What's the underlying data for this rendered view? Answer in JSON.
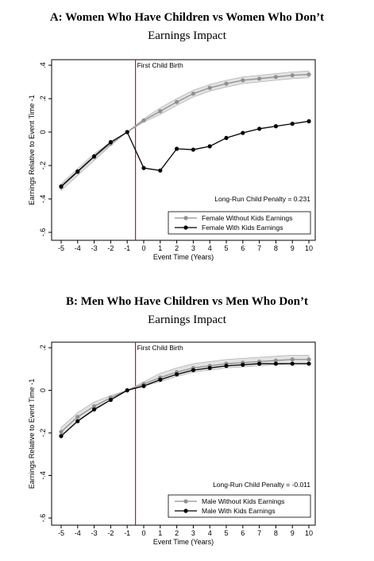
{
  "chart_data": [
    {
      "type": "line",
      "title": "A: Women Who Have Children vs Women Who Don’t",
      "subtitle": "Earnings Impact",
      "xlabel": "Event Time (Years)",
      "ylabel": "Earnings Relative to Event Time -1",
      "xlim": [
        -5,
        10
      ],
      "ylim": [
        -0.6,
        0.4
      ],
      "x_ticks": [
        -5,
        -4,
        -3,
        -2,
        -1,
        0,
        1,
        2,
        3,
        4,
        5,
        6,
        7,
        8,
        9,
        10
      ],
      "y_ticks": [
        -0.6,
        -0.4,
        -0.2,
        0,
        0.2,
        0.4
      ],
      "y_tick_labels": [
        "-.6",
        "-.4",
        "-.2",
        "0",
        ".2",
        ".4"
      ],
      "event_line": {
        "x": -0.5,
        "label": "First Child Birth",
        "color": "#c8102e"
      },
      "annotation": "Long-Run Child Penalty = 0.231",
      "legend_position": "bottom-right",
      "x": [
        -5,
        -4,
        -3,
        -2,
        -1,
        0,
        1,
        2,
        3,
        4,
        5,
        6,
        7,
        8,
        9,
        10
      ],
      "series": [
        {
          "name": "Female Without Kids Earnings",
          "color": "#909090",
          "band": true,
          "values": [
            -0.33,
            -0.24,
            -0.15,
            -0.07,
            0.0,
            0.07,
            0.125,
            0.18,
            0.23,
            0.265,
            0.29,
            0.31,
            0.32,
            0.33,
            0.34,
            0.345
          ]
        },
        {
          "name": "Female With Kids Earnings",
          "color": "#000000",
          "band": false,
          "values": [
            -0.325,
            -0.235,
            -0.145,
            -0.06,
            0.0,
            -0.215,
            -0.23,
            -0.1,
            -0.105,
            -0.085,
            -0.035,
            -0.005,
            0.02,
            0.035,
            0.05,
            0.065
          ]
        }
      ]
    },
    {
      "type": "line",
      "title": "B: Men Who Have Children vs Men Who Don’t",
      "subtitle": "Earnings Impact",
      "xlabel": "Event Time (Years)",
      "ylabel": "Earnings Relative to Event Time -1",
      "xlim": [
        -5,
        10
      ],
      "ylim": [
        -0.6,
        0.2
      ],
      "x_ticks": [
        -5,
        -4,
        -3,
        -2,
        -1,
        0,
        1,
        2,
        3,
        4,
        5,
        6,
        7,
        8,
        9,
        10
      ],
      "y_ticks": [
        -0.6,
        -0.4,
        -0.2,
        0,
        0.2
      ],
      "y_tick_labels": [
        "-.6",
        "-.4",
        "-.2",
        "0",
        ".2"
      ],
      "event_line": {
        "x": -0.5,
        "label": "First Child Birth",
        "color": "#c8102e"
      },
      "annotation": "Long-Run Child Penalty = -0.011",
      "legend_position": "bottom-right",
      "x": [
        -5,
        -4,
        -3,
        -2,
        -1,
        0,
        1,
        2,
        3,
        4,
        5,
        6,
        7,
        8,
        9,
        10
      ],
      "series": [
        {
          "name": "Male Without Kids Earnings",
          "color": "#909090",
          "band": true,
          "values": [
            -0.195,
            -0.125,
            -0.075,
            -0.035,
            0.0,
            0.03,
            0.06,
            0.085,
            0.105,
            0.115,
            0.125,
            0.13,
            0.135,
            0.14,
            0.145,
            0.145
          ]
        },
        {
          "name": "Male With Kids Earnings",
          "color": "#000000",
          "band": false,
          "values": [
            -0.215,
            -0.145,
            -0.09,
            -0.045,
            0.0,
            0.02,
            0.05,
            0.075,
            0.095,
            0.105,
            0.115,
            0.12,
            0.125,
            0.125,
            0.125,
            0.125
          ]
        }
      ]
    }
  ]
}
